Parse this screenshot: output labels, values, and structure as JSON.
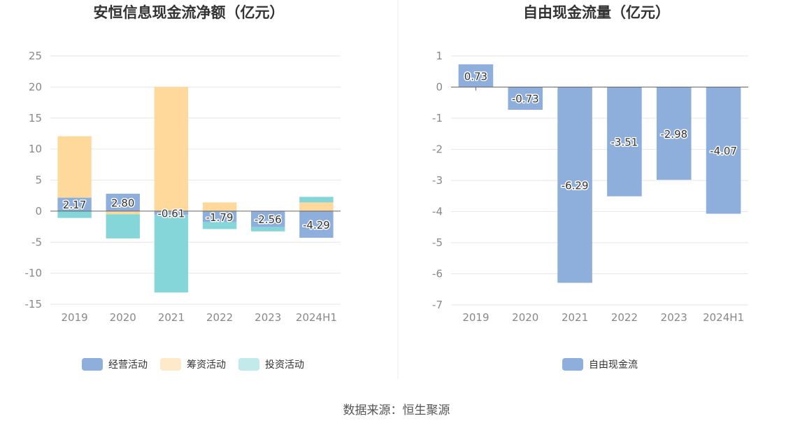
{
  "footer": {
    "source": "数据来源：恒生聚源"
  },
  "chart_data": [
    {
      "type": "bar",
      "stacked": true,
      "title": "安恒信息现金流净额（亿元）",
      "categories": [
        "2019",
        "2020",
        "2021",
        "2022",
        "2023",
        "2024H1"
      ],
      "yticks": [
        "25",
        "20",
        "15",
        "10",
        "5",
        "0",
        "-5",
        "-10",
        "-15"
      ],
      "ylim": [
        -15,
        25
      ],
      "grid": true,
      "legend_position": "bottom",
      "series": [
        {
          "name": "经营活动",
          "color": "#8eaedc",
          "values": [
            2.17,
            2.8,
            -0.61,
            -1.79,
            -2.56,
            -4.29
          ],
          "labels": [
            "2.17",
            "2.80",
            "-0.61",
            "-1.79",
            "-2.56",
            "-4.29"
          ]
        },
        {
          "name": "筹资活动",
          "color": "#fed99b",
          "values": [
            9.9,
            -0.5,
            20.0,
            1.4,
            0.0,
            1.4
          ]
        },
        {
          "name": "投资活动",
          "color": "#85d6d9",
          "values": [
            -1.1,
            -3.9,
            -12.5,
            -1.1,
            -0.7,
            0.9
          ]
        }
      ],
      "legend": [
        {
          "name": "经营活动",
          "color": "#8eaedc"
        },
        {
          "name": "筹资活动",
          "color": "#feeacb"
        },
        {
          "name": "投资活动",
          "color": "#c3eaeb"
        }
      ]
    },
    {
      "type": "bar",
      "title": "自由现金流量（亿元）",
      "categories": [
        "2019",
        "2020",
        "2021",
        "2022",
        "2023",
        "2024H1"
      ],
      "yticks": [
        "1",
        "0",
        "-1",
        "-2",
        "-3",
        "-4",
        "-5",
        "-6",
        "-7"
      ],
      "ylim": [
        -7,
        1
      ],
      "grid": true,
      "legend_position": "bottom",
      "series": [
        {
          "name": "自由现金流",
          "color": "#8eaedc",
          "values": [
            0.73,
            -0.73,
            -6.29,
            -3.51,
            -2.98,
            -4.07
          ],
          "labels": [
            "0.73",
            "-0.73",
            "-6.29",
            "-3.51",
            "-2.98",
            "-4.07"
          ]
        }
      ],
      "legend": [
        {
          "name": "自由现金流",
          "color": "#8eaedc"
        }
      ]
    }
  ]
}
